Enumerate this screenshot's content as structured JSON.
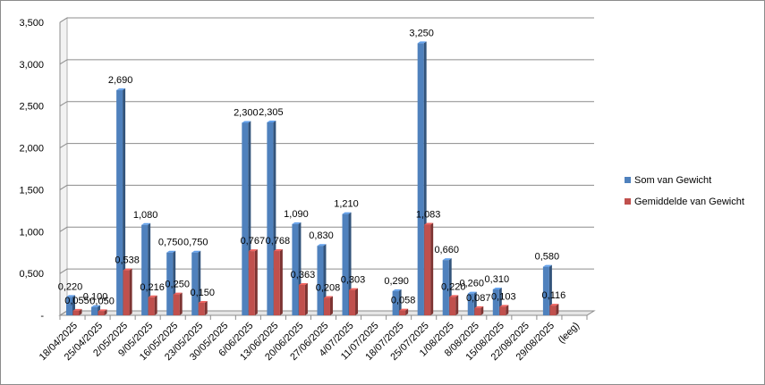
{
  "chart_data": {
    "type": "bar",
    "categories": [
      "18/04/2025",
      "25/04/2025",
      "2/05/2025",
      "9/05/2025",
      "16/05/2025",
      "23/05/2025",
      "30/05/2025",
      "6/06/2025",
      "13/06/2025",
      "20/06/2025",
      "27/06/2025",
      "4/07/2025",
      "11/07/2025",
      "18/07/2025",
      "25/07/2025",
      "1/08/2025",
      "8/08/2025",
      "15/08/2025",
      "22/08/2025",
      "29/08/2025",
      "(leeg)"
    ],
    "series": [
      {
        "name": "Som van Gewicht",
        "color": "#4f81bd",
        "values": [
          0.22,
          0.1,
          2.69,
          1.08,
          0.75,
          0.75,
          null,
          2.3,
          2.305,
          1.09,
          0.83,
          1.21,
          null,
          0.29,
          3.25,
          0.66,
          0.26,
          0.31,
          null,
          0.58,
          null
        ],
        "labels": [
          "0,220",
          "0,100",
          "2,690",
          "1,080",
          "0,750",
          "0,750",
          "",
          "2,300",
          "2,305",
          "1,090",
          "0,830",
          "1,210",
          "",
          "0,290",
          "3,250",
          "0,660",
          "0,260",
          "0,310",
          "",
          "0,580",
          ""
        ]
      },
      {
        "name": "Gemiddelde van Gewicht",
        "color": "#c0504d",
        "values": [
          0.055,
          0.05,
          0.538,
          0.216,
          0.25,
          0.15,
          null,
          0.767,
          0.768,
          0.363,
          0.208,
          0.303,
          null,
          0.058,
          1.083,
          0.22,
          0.087,
          0.103,
          null,
          0.116,
          null
        ],
        "labels": [
          "0,055",
          "0,050",
          "0,538",
          "0,216",
          "0,250",
          "0,150",
          "",
          "0,767",
          "0,768",
          "0,363",
          "0,208",
          "0,303",
          "",
          "0,058",
          "1,083",
          "0,220",
          "0,087",
          "0,103",
          "",
          "0,116",
          ""
        ]
      }
    ],
    "yticks": [
      "-",
      "0,500",
      "1,000",
      "1,500",
      "2,000",
      "2,500",
      "3,000",
      "3,500"
    ],
    "ylim": [
      0,
      3.5
    ],
    "grid": true,
    "legend": "right",
    "title": "",
    "xlabel": "",
    "ylabel": ""
  }
}
